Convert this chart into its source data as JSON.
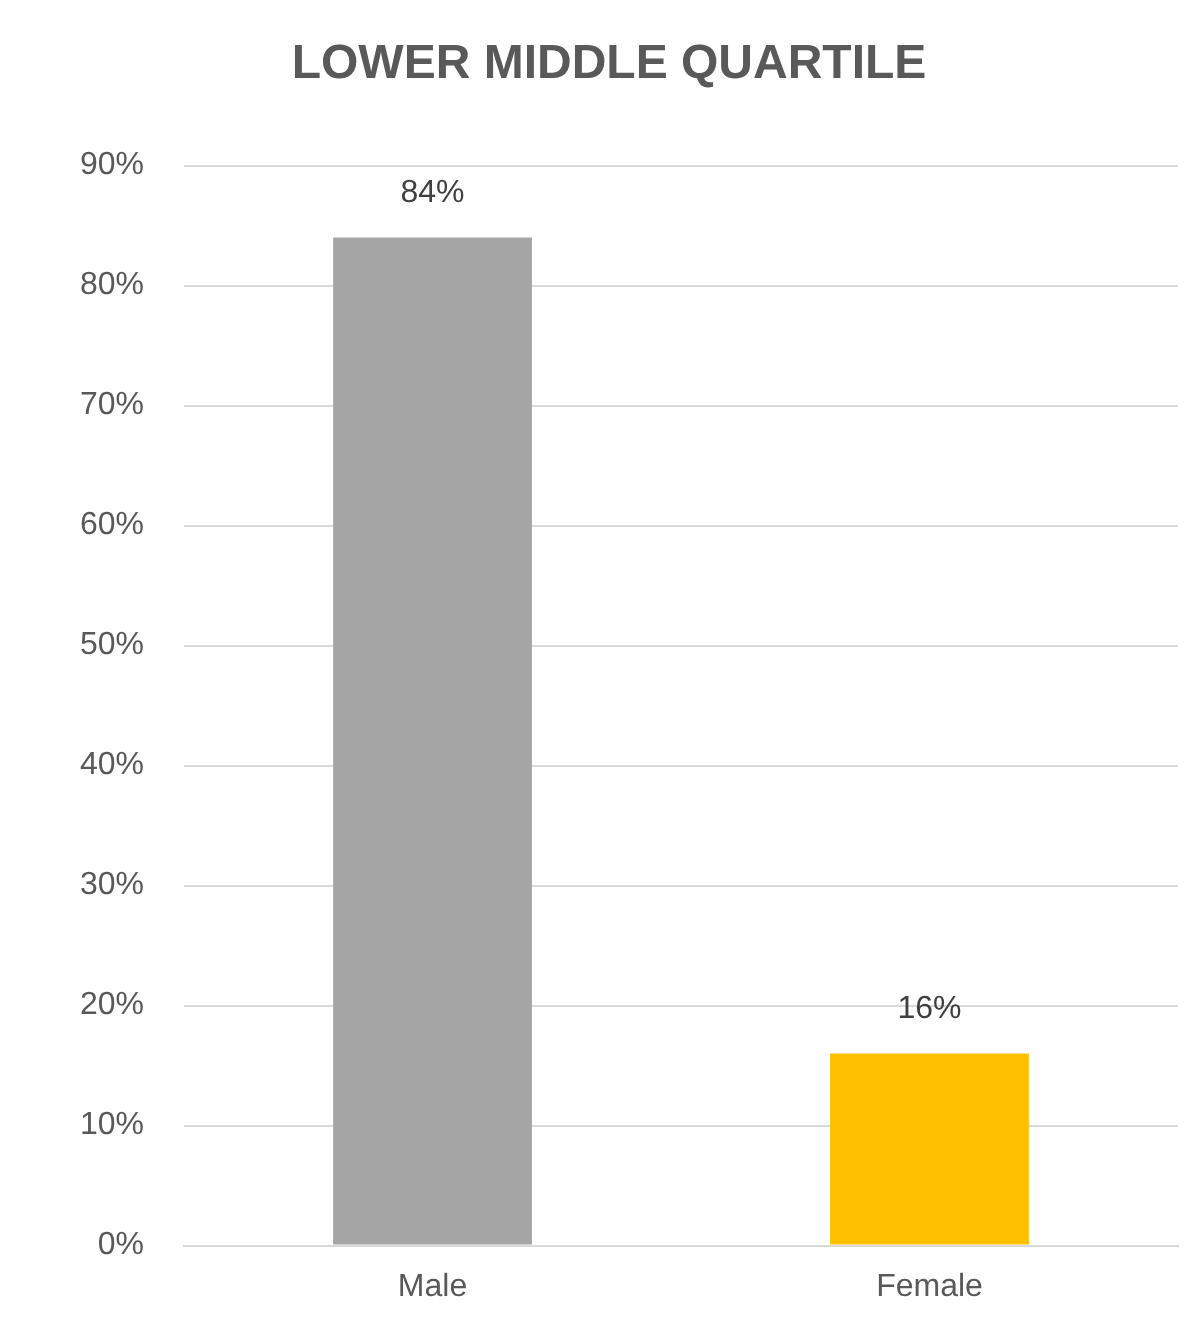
{
  "chart_data": {
    "type": "bar",
    "title": "LOWER MIDDLE QUARTILE",
    "categories": [
      "Male",
      "Female"
    ],
    "values": [
      84,
      16
    ],
    "colors": [
      "#a5a5a5",
      "#ffc000"
    ],
    "value_labels": [
      "84%",
      "16%"
    ],
    "ylim": [
      0,
      90
    ],
    "yticks": [
      {
        "value": 0,
        "label": "0%"
      },
      {
        "value": 10,
        "label": "10%"
      },
      {
        "value": 20,
        "label": "20%"
      },
      {
        "value": 30,
        "label": "30%"
      },
      {
        "value": 40,
        "label": "40%"
      },
      {
        "value": 50,
        "label": "50%"
      },
      {
        "value": 60,
        "label": "60%"
      },
      {
        "value": 70,
        "label": "70%"
      },
      {
        "value": 80,
        "label": "80%"
      },
      {
        "value": 90,
        "label": "90%"
      }
    ],
    "grid": "y",
    "legend": false
  }
}
